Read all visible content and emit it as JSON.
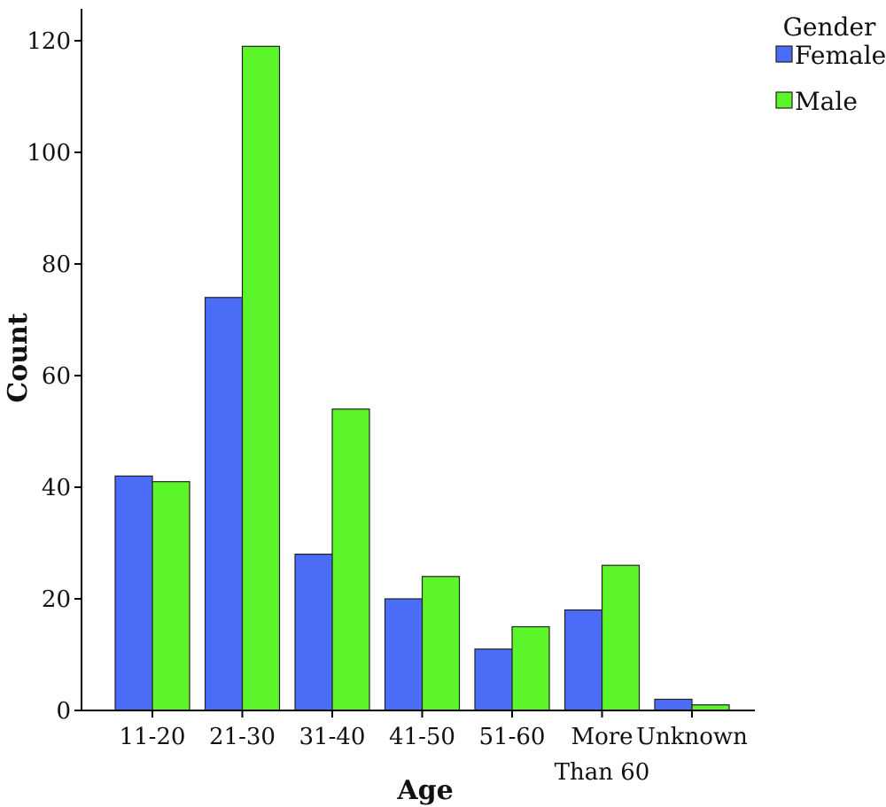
{
  "chart_data": {
    "type": "bar",
    "xlabel": "Age",
    "ylabel": "Count",
    "ylim": [
      0,
      120
    ],
    "yticks": [
      0,
      20,
      40,
      60,
      80,
      100,
      120
    ],
    "grid": false,
    "legend": {
      "title": "Gender",
      "position": "top-right"
    },
    "categories": [
      [
        "11-20"
      ],
      [
        "21-30"
      ],
      [
        "31-40"
      ],
      [
        "41-50"
      ],
      [
        "51-60"
      ],
      [
        "More",
        "Than 60"
      ],
      [
        "Unknown"
      ]
    ],
    "series": [
      {
        "name": "Female",
        "color": "#4a6cf7",
        "values": [
          42,
          74,
          28,
          20,
          11,
          18,
          2
        ]
      },
      {
        "name": "Male",
        "color": "#5cf52a",
        "values": [
          41,
          119,
          54,
          24,
          15,
          26,
          1
        ]
      }
    ]
  }
}
